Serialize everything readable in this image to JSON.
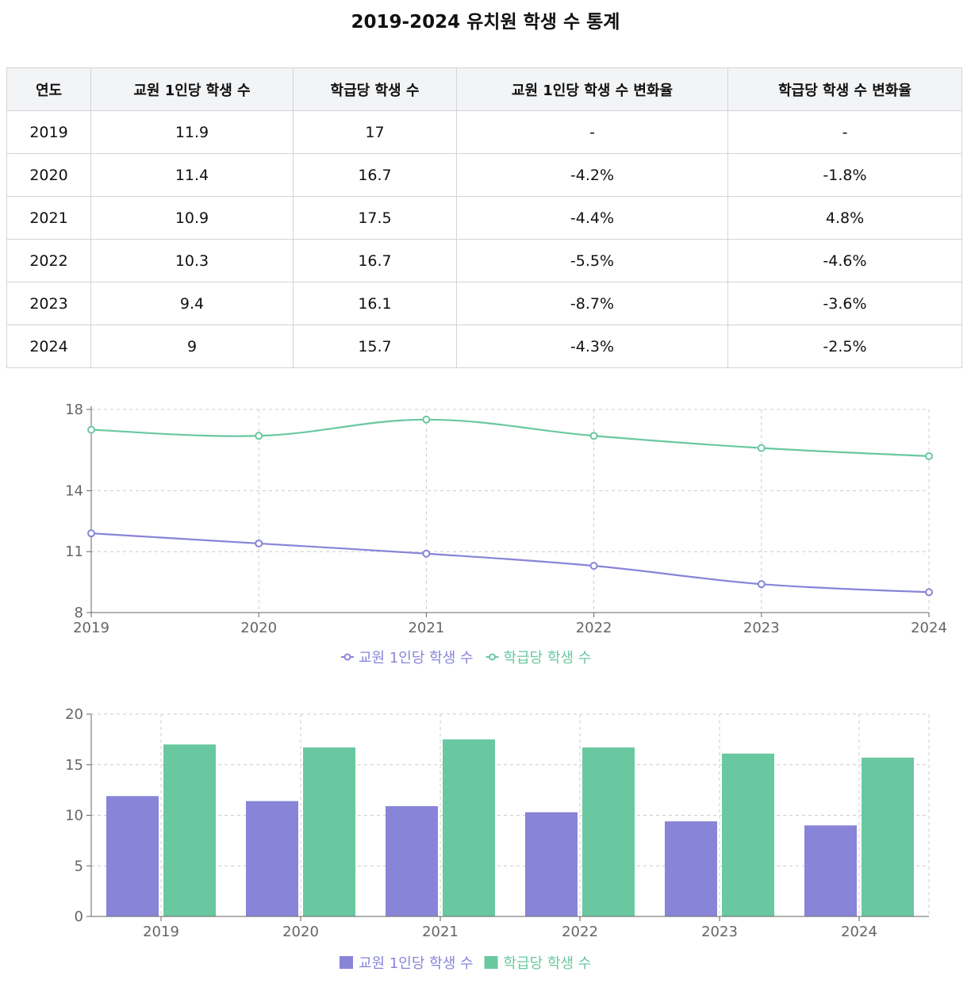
{
  "title": "2019-2024 유치원 학생 수 통계",
  "table": {
    "headers": [
      "연도",
      "교원 1인당 학생 수",
      "학급당 학생 수",
      "교원 1인당 학생 수 변화율",
      "학급당 학생 수 변화율"
    ],
    "rows": [
      [
        "2019",
        "11.9",
        "17",
        "-",
        "-"
      ],
      [
        "2020",
        "11.4",
        "16.7",
        "-4.2%",
        "-1.8%"
      ],
      [
        "2021",
        "10.9",
        "17.5",
        "-4.4%",
        "4.8%"
      ],
      [
        "2022",
        "10.3",
        "16.7",
        "-5.5%",
        "-4.6%"
      ],
      [
        "2023",
        "9.4",
        "16.1",
        "-8.7%",
        "-3.6%"
      ],
      [
        "2024",
        "9",
        "15.7",
        "-4.3%",
        "-2.5%"
      ]
    ]
  },
  "chart_data": [
    {
      "type": "line",
      "categories": [
        "2019",
        "2020",
        "2021",
        "2022",
        "2023",
        "2024"
      ],
      "series": [
        {
          "name": "교원 1인당 학생 수",
          "values": [
            11.9,
            11.4,
            10.9,
            10.3,
            9.4,
            9
          ],
          "color": "#8884d8"
        },
        {
          "name": "학급당 학생 수",
          "values": [
            17,
            16.7,
            17.5,
            16.7,
            16.1,
            15.7
          ],
          "color": "#69c8a0"
        }
      ],
      "ylim": [
        8,
        18
      ],
      "yticks": [
        8,
        11,
        14,
        18
      ],
      "grid": true,
      "legend": "bottom"
    },
    {
      "type": "bar",
      "categories": [
        "2019",
        "2020",
        "2021",
        "2022",
        "2023",
        "2024"
      ],
      "series": [
        {
          "name": "교원 1인당 학생 수",
          "values": [
            11.9,
            11.4,
            10.9,
            10.3,
            9.4,
            9
          ],
          "color": "#8884d8"
        },
        {
          "name": "학급당 학생 수",
          "values": [
            17,
            16.7,
            17.5,
            16.7,
            16.1,
            15.7
          ],
          "color": "#69c8a0"
        }
      ],
      "ylim": [
        0,
        20
      ],
      "yticks": [
        0,
        5,
        10,
        15,
        20
      ],
      "grid": true,
      "legend": "bottom"
    }
  ]
}
